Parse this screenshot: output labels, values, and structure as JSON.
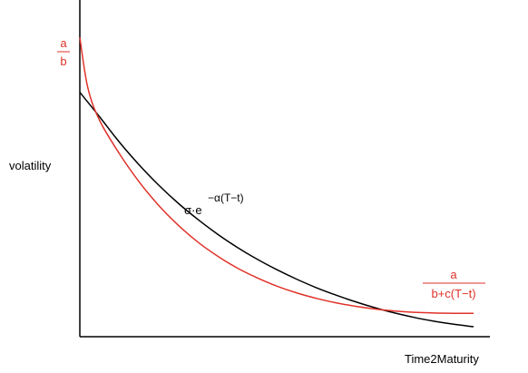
{
  "chart_data": {
    "type": "line",
    "title": "",
    "xlabel": "Time2Maturity",
    "ylabel": "volatility",
    "grid": false,
    "legend": "none",
    "x_ticks_shown": false,
    "y_ticks_shown": false,
    "series": [
      {
        "label": {
          "base": "σ·e",
          "superscript": "−α(T−t)"
        },
        "color": "#000000",
        "values": [
          {
            "x": 0.0,
            "y": 0.98
          },
          {
            "x": 0.05,
            "y": 0.882
          },
          {
            "x": 0.1,
            "y": 0.781
          },
          {
            "x": 0.15,
            "y": 0.69
          },
          {
            "x": 0.2,
            "y": 0.608
          },
          {
            "x": 0.25,
            "y": 0.535
          },
          {
            "x": 0.3,
            "y": 0.47
          },
          {
            "x": 0.35,
            "y": 0.411
          },
          {
            "x": 0.4,
            "y": 0.358
          },
          {
            "x": 0.45,
            "y": 0.311
          },
          {
            "x": 0.5,
            "y": 0.269
          },
          {
            "x": 0.55,
            "y": 0.231
          },
          {
            "x": 0.6,
            "y": 0.197
          },
          {
            "x": 0.65,
            "y": 0.167
          },
          {
            "x": 0.7,
            "y": 0.14
          },
          {
            "x": 0.75,
            "y": 0.116
          },
          {
            "x": 0.8,
            "y": 0.095
          },
          {
            "x": 0.85,
            "y": 0.077
          },
          {
            "x": 0.9,
            "y": 0.062
          },
          {
            "x": 0.95,
            "y": 0.05
          },
          {
            "x": 1.0,
            "y": 0.04
          }
        ]
      },
      {
        "label": {
          "numerator": "a",
          "denominator": "b+c(T−t)"
        },
        "intercept_label": {
          "numerator": "a",
          "denominator": "b"
        },
        "color": "#e0322a",
        "values": [
          {
            "x": 0.0,
            "y": 1.2
          },
          {
            "x": 0.02,
            "y": 1.0
          },
          {
            "x": 0.05,
            "y": 0.868
          },
          {
            "x": 0.1,
            "y": 0.735
          },
          {
            "x": 0.15,
            "y": 0.622
          },
          {
            "x": 0.2,
            "y": 0.527
          },
          {
            "x": 0.25,
            "y": 0.447
          },
          {
            "x": 0.3,
            "y": 0.379
          },
          {
            "x": 0.35,
            "y": 0.323
          },
          {
            "x": 0.4,
            "y": 0.275
          },
          {
            "x": 0.45,
            "y": 0.236
          },
          {
            "x": 0.5,
            "y": 0.203
          },
          {
            "x": 0.55,
            "y": 0.176
          },
          {
            "x": 0.6,
            "y": 0.154
          },
          {
            "x": 0.65,
            "y": 0.136
          },
          {
            "x": 0.7,
            "y": 0.122
          },
          {
            "x": 0.75,
            "y": 0.111
          },
          {
            "x": 0.8,
            "y": 0.103
          },
          {
            "x": 0.85,
            "y": 0.098
          },
          {
            "x": 0.9,
            "y": 0.095
          },
          {
            "x": 0.95,
            "y": 0.094
          },
          {
            "x": 1.0,
            "y": 0.094
          }
        ]
      }
    ],
    "xlim": [
      0,
      1
    ],
    "ylim": [
      0,
      1.35
    ]
  }
}
